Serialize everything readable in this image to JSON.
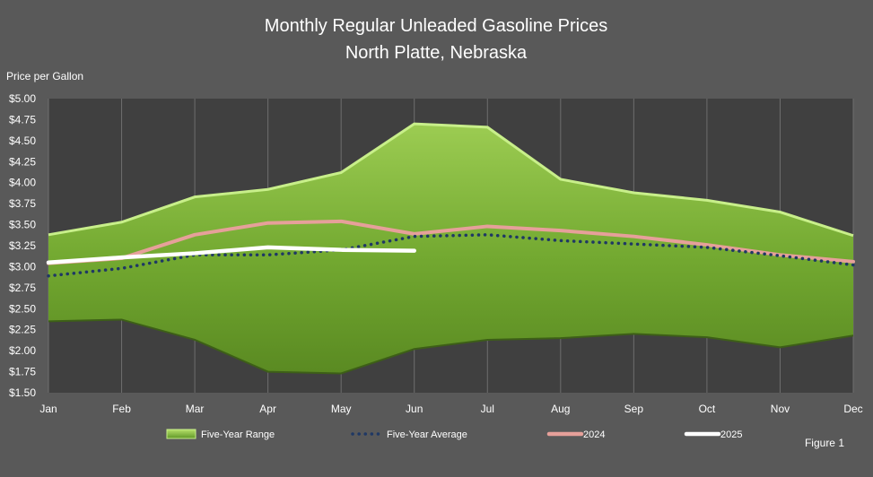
{
  "chart_data": {
    "type": "area",
    "title": "Monthly Regular Unleaded Gasoline Prices",
    "subtitle": "North Platte, Nebraska",
    "ylabel": "Price per Gallon",
    "xlabel": "",
    "figure_label": "Figure 1",
    "categories": [
      "Jan",
      "Feb",
      "Mar",
      "Apr",
      "May",
      "Jun",
      "Jul",
      "Aug",
      "Sep",
      "Oct",
      "Nov",
      "Dec"
    ],
    "ylim": [
      1.5,
      5.0
    ],
    "ytick_step": 0.25,
    "ytick_labels": [
      "$1.50",
      "$1.75",
      "$2.00",
      "$2.25",
      "$2.50",
      "$2.75",
      "$3.00",
      "$3.25",
      "$3.50",
      "$3.75",
      "$4.00",
      "$4.25",
      "$4.50",
      "$4.75",
      "$5.00"
    ],
    "grid": "vertical",
    "legend_position": "bottom",
    "range": {
      "name": "Five-Year Range",
      "high": [
        3.38,
        3.53,
        3.83,
        3.92,
        4.12,
        4.7,
        4.66,
        4.04,
        3.88,
        3.79,
        3.65,
        3.37
      ],
      "low": [
        2.35,
        2.37,
        2.13,
        1.75,
        1.73,
        2.02,
        2.13,
        2.15,
        2.2,
        2.16,
        2.04,
        2.18
      ],
      "color": "#8cc63f"
    },
    "series": [
      {
        "name": "Five-Year Average",
        "values": [
          2.89,
          2.98,
          3.14,
          3.14,
          3.2,
          3.36,
          3.38,
          3.31,
          3.27,
          3.23,
          3.13,
          3.02
        ],
        "color": "#1f3864",
        "style": "dotted"
      },
      {
        "name": "2024",
        "values": [
          3.04,
          3.1,
          3.38,
          3.52,
          3.54,
          3.39,
          3.48,
          3.43,
          3.36,
          3.26,
          3.14,
          3.06
        ],
        "color": "#e6a09a",
        "style": "solid"
      },
      {
        "name": "2025",
        "values": [
          3.05,
          3.11,
          3.16,
          3.23,
          3.2,
          3.19,
          null,
          null,
          null,
          null,
          null,
          null
        ],
        "color": "#ffffff",
        "style": "solid"
      }
    ]
  }
}
